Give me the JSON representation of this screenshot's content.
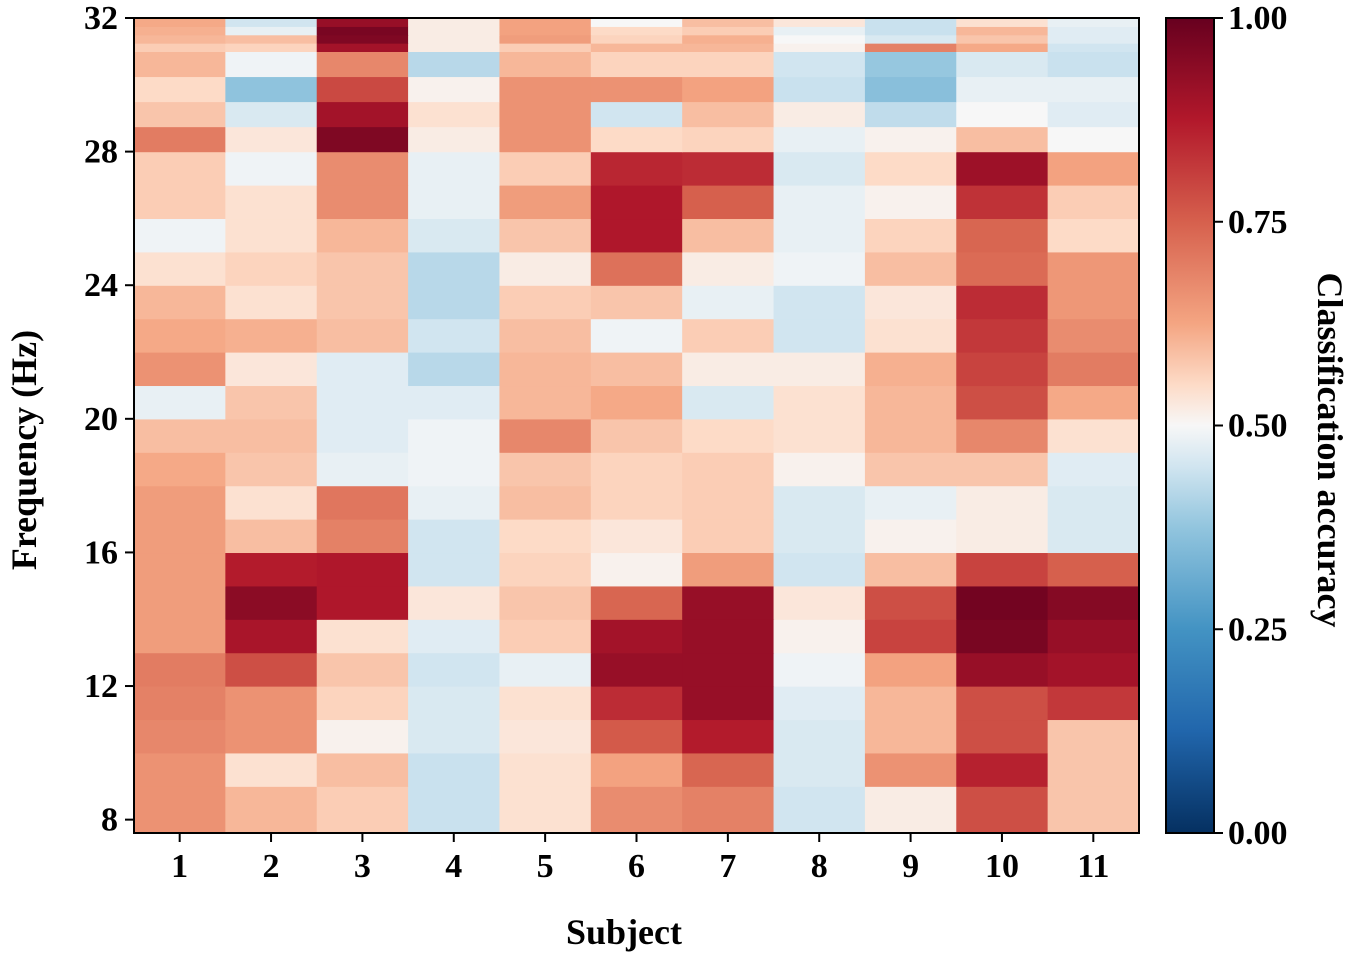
{
  "chart_data": {
    "type": "heatmap",
    "xlabel": "Subject",
    "ylabel": "Frequency (Hz)",
    "colorbar_label": "Classification accuracy",
    "x_categories": [
      "1",
      "2",
      "3",
      "4",
      "5",
      "6",
      "7",
      "8",
      "9",
      "10",
      "11"
    ],
    "y_ticks": [
      8,
      12,
      16,
      20,
      24,
      28,
      32
    ],
    "colorbar_ticks": [
      "0.00",
      "0.25",
      "0.50",
      "0.75",
      "1.00"
    ],
    "y_range": [
      7.6,
      32
    ],
    "value_range": [
      0,
      1
    ],
    "colormap": "RdBu_r",
    "frequencies_hz": [
      8,
      9,
      10,
      11,
      12,
      13,
      14,
      15,
      16,
      17,
      18,
      19,
      20,
      21,
      22,
      23,
      24,
      25,
      26,
      27,
      28,
      29,
      30,
      31
    ],
    "values_by_frequency": [
      [
        0.66,
        0.6,
        0.57,
        0.44,
        0.54,
        0.67,
        0.69,
        0.45,
        0.52,
        0.78,
        0.58
      ],
      [
        0.66,
        0.54,
        0.59,
        0.44,
        0.54,
        0.63,
        0.74,
        0.46,
        0.66,
        0.86,
        0.58
      ],
      [
        0.68,
        0.66,
        0.51,
        0.46,
        0.53,
        0.76,
        0.87,
        0.46,
        0.6,
        0.78,
        0.58
      ],
      [
        0.69,
        0.66,
        0.56,
        0.46,
        0.54,
        0.84,
        0.92,
        0.47,
        0.6,
        0.78,
        0.82
      ],
      [
        0.7,
        0.78,
        0.58,
        0.45,
        0.48,
        0.92,
        0.92,
        0.49,
        0.63,
        0.92,
        0.9
      ],
      [
        0.64,
        0.89,
        0.54,
        0.47,
        0.57,
        0.9,
        0.92,
        0.51,
        0.8,
        0.97,
        0.92
      ],
      [
        0.64,
        0.94,
        0.88,
        0.53,
        0.58,
        0.74,
        0.92,
        0.53,
        0.78,
        0.98,
        0.95
      ],
      [
        0.64,
        0.87,
        0.88,
        0.45,
        0.56,
        0.51,
        0.64,
        0.45,
        0.59,
        0.8,
        0.75
      ],
      [
        0.64,
        0.59,
        0.69,
        0.45,
        0.55,
        0.53,
        0.57,
        0.46,
        0.51,
        0.52,
        0.46
      ],
      [
        0.64,
        0.54,
        0.71,
        0.48,
        0.59,
        0.56,
        0.57,
        0.46,
        0.48,
        0.52,
        0.46
      ],
      [
        0.62,
        0.58,
        0.48,
        0.49,
        0.58,
        0.56,
        0.57,
        0.51,
        0.58,
        0.58,
        0.47
      ],
      [
        0.59,
        0.59,
        0.47,
        0.49,
        0.68,
        0.58,
        0.55,
        0.54,
        0.6,
        0.68,
        0.54
      ],
      [
        0.48,
        0.58,
        0.47,
        0.47,
        0.6,
        0.62,
        0.46,
        0.54,
        0.6,
        0.78,
        0.62
      ],
      [
        0.66,
        0.53,
        0.47,
        0.42,
        0.6,
        0.59,
        0.52,
        0.52,
        0.61,
        0.8,
        0.7
      ],
      [
        0.62,
        0.61,
        0.59,
        0.45,
        0.59,
        0.49,
        0.57,
        0.45,
        0.54,
        0.82,
        0.67
      ],
      [
        0.6,
        0.54,
        0.58,
        0.42,
        0.57,
        0.58,
        0.48,
        0.45,
        0.53,
        0.84,
        0.65
      ],
      [
        0.54,
        0.56,
        0.58,
        0.42,
        0.52,
        0.72,
        0.52,
        0.49,
        0.59,
        0.73,
        0.65
      ],
      [
        0.49,
        0.54,
        0.6,
        0.46,
        0.58,
        0.88,
        0.59,
        0.48,
        0.56,
        0.74,
        0.55
      ],
      [
        0.57,
        0.54,
        0.67,
        0.48,
        0.64,
        0.88,
        0.75,
        0.48,
        0.51,
        0.83,
        0.57
      ],
      [
        0.57,
        0.49,
        0.67,
        0.48,
        0.57,
        0.85,
        0.84,
        0.46,
        0.55,
        0.91,
        0.63
      ],
      [
        0.61,
        0.62,
        0.8,
        0.48,
        0.55,
        0.82,
        0.69,
        0.48,
        0.62,
        0.96,
        0.71
      ],
      [
        0.52,
        0.71,
        0.9,
        0.52,
        0.53,
        0.72,
        0.7,
        0.53,
        0.69,
        0.93,
        0.68
      ],
      [
        0.51,
        0.85,
        0.9,
        0.5,
        0.51,
        0.53,
        0.66,
        0.55,
        0.69,
        0.92,
        0.61
      ],
      [
        0.57,
        0.8,
        0.92,
        0.51,
        0.52,
        0.57,
        0.62,
        0.51,
        0.74,
        0.79,
        0.51
      ]
    ],
    "top_rows_31_to_32": {
      "frequencies_hz": [
        31.0,
        31.25,
        31.5,
        31.75
      ],
      "values": [
        [
          0.57,
          0.56,
          0.9,
          0.52,
          0.57,
          0.6,
          0.6,
          0.51,
          0.69,
          0.62,
          0.45
        ],
        [
          0.6,
          0.59,
          0.96,
          0.52,
          0.64,
          0.56,
          0.61,
          0.5,
          0.46,
          0.58,
          0.47
        ],
        [
          0.61,
          0.48,
          0.97,
          0.52,
          0.63,
          0.55,
          0.57,
          0.48,
          0.44,
          0.6,
          0.47
        ],
        [
          0.62,
          0.45,
          0.92,
          0.52,
          0.63,
          0.5,
          0.59,
          0.53,
          0.44,
          0.54,
          0.48
        ]
      ]
    },
    "upper_rows": {
      "frequencies_hz": [
        28,
        28.75,
        29.5,
        30.25,
        31
      ],
      "values": [
        [
          0.7,
          0.53,
          0.96,
          0.52,
          0.66,
          0.55,
          0.56,
          0.48,
          0.51,
          0.59,
          0.5
        ],
        [
          0.58,
          0.46,
          0.9,
          0.54,
          0.66,
          0.45,
          0.59,
          0.52,
          0.43,
          0.5,
          0.47
        ],
        [
          0.55,
          0.37,
          0.79,
          0.51,
          0.66,
          0.66,
          0.63,
          0.44,
          0.36,
          0.48,
          0.48
        ],
        [
          0.6,
          0.49,
          0.68,
          0.42,
          0.6,
          0.56,
          0.56,
          0.45,
          0.38,
          0.46,
          0.44
        ],
        [
          0.59,
          0.55,
          0.57,
          0.4,
          0.58,
          0.59,
          0.55,
          0.52,
          0.44,
          0.53,
          0.4
        ]
      ]
    }
  }
}
